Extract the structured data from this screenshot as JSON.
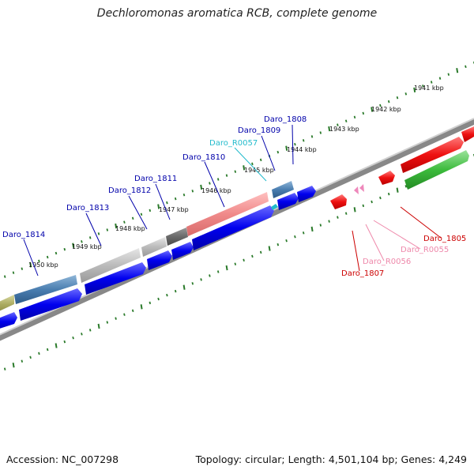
{
  "title": "Dechloromonas aromatica RCB, complete genome",
  "accession_label": "Accession: NC_007298",
  "summary": "Topology: circular; Length: 4,501,104 bp; Genes: 4,249",
  "colors": {
    "cds_forward_blue": "#0000ee",
    "cds_green": "#33bb33",
    "cds_red": "#ee0000",
    "rna_pink": "#ee88bb",
    "label_blue": "#0000aa",
    "label_cyan": "#22bbcc",
    "label_red": "#cc0000",
    "label_pink": "#ee88aa",
    "tick_green": "#2a7a2a",
    "backbone_gray": "#777777"
  },
  "scale": {
    "unit": "kbp",
    "ticks": [
      "1941 kbp",
      "1942 kbp",
      "1943 kbp",
      "1944 kbp",
      "1945 kbp",
      "1946 kbp",
      "1947 kbp",
      "1948 kbp",
      "1949 kbp",
      "1950 kbp"
    ]
  },
  "genes": [
    {
      "name": "Daro_1805",
      "strand": "-",
      "color": "red"
    },
    {
      "name": "Daro_R0055",
      "strand": "-",
      "color": "pink"
    },
    {
      "name": "Daro_R0056",
      "strand": "-",
      "color": "pink"
    },
    {
      "name": "Daro_1807",
      "strand": "-",
      "color": "red"
    },
    {
      "name": "Daro_1808",
      "strand": "+",
      "color": "blue"
    },
    {
      "name": "Daro_1809",
      "strand": "+",
      "color": "blue"
    },
    {
      "name": "Daro_R0057",
      "strand": "+",
      "color": "cyan"
    },
    {
      "name": "Daro_1810",
      "strand": "+",
      "color": "blue"
    },
    {
      "name": "Daro_1811",
      "strand": "+",
      "color": "blue"
    },
    {
      "name": "Daro_1812",
      "strand": "+",
      "color": "blue"
    },
    {
      "name": "Daro_1813",
      "strand": "+",
      "color": "blue"
    },
    {
      "name": "Daro_1814",
      "strand": "+",
      "color": "blue"
    }
  ]
}
